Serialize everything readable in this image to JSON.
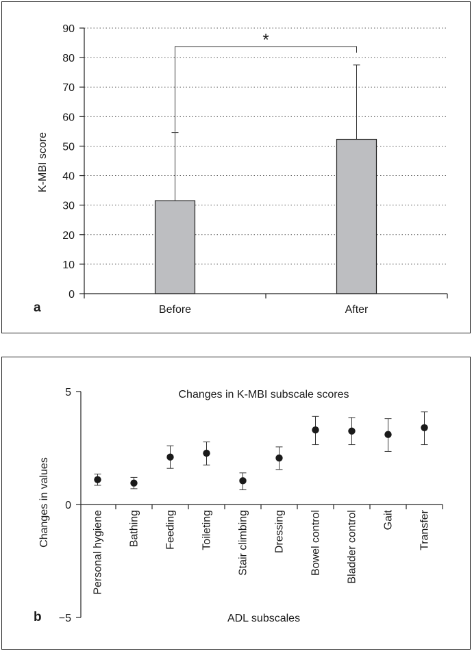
{
  "chart_data": [
    {
      "panel": "a",
      "type": "bar",
      "title": "",
      "xlabel": "",
      "ylabel": "K-MBI score",
      "ylim": [
        0,
        90
      ],
      "yticks": [
        0,
        10,
        20,
        30,
        40,
        50,
        60,
        70,
        80,
        90
      ],
      "grid": true,
      "categories": [
        "Before",
        "After"
      ],
      "values": [
        31.5,
        52.3
      ],
      "error_upper": [
        54.6,
        77.5
      ],
      "significance": {
        "between": [
          "Before",
          "After"
        ],
        "label": "*"
      }
    },
    {
      "panel": "b",
      "type": "scatter",
      "title": "Changes in K-MBI subscale scores",
      "xlabel": "ADL subscales",
      "ylabel": "Changes in values",
      "ylim": [
        -5,
        5
      ],
      "yticks": [
        -5,
        0,
        5
      ],
      "ytick_labels": [
        "−5",
        "0",
        "5"
      ],
      "grid": false,
      "categories": [
        "Personal hygiene",
        "Bathing",
        "Feeding",
        "Toileting",
        "Stair climbing",
        "Dressing",
        "Bowel control",
        "Bladder control",
        "Gait",
        "Transfer"
      ],
      "values": [
        1.1,
        0.95,
        2.1,
        2.27,
        1.05,
        2.06,
        3.3,
        3.25,
        3.1,
        3.4
      ],
      "error_low": [
        0.85,
        0.7,
        1.6,
        1.75,
        0.65,
        1.55,
        2.65,
        2.65,
        2.35,
        2.65
      ],
      "error_high": [
        1.35,
        1.2,
        2.6,
        2.77,
        1.4,
        2.55,
        3.9,
        3.85,
        3.8,
        4.1
      ]
    }
  ]
}
